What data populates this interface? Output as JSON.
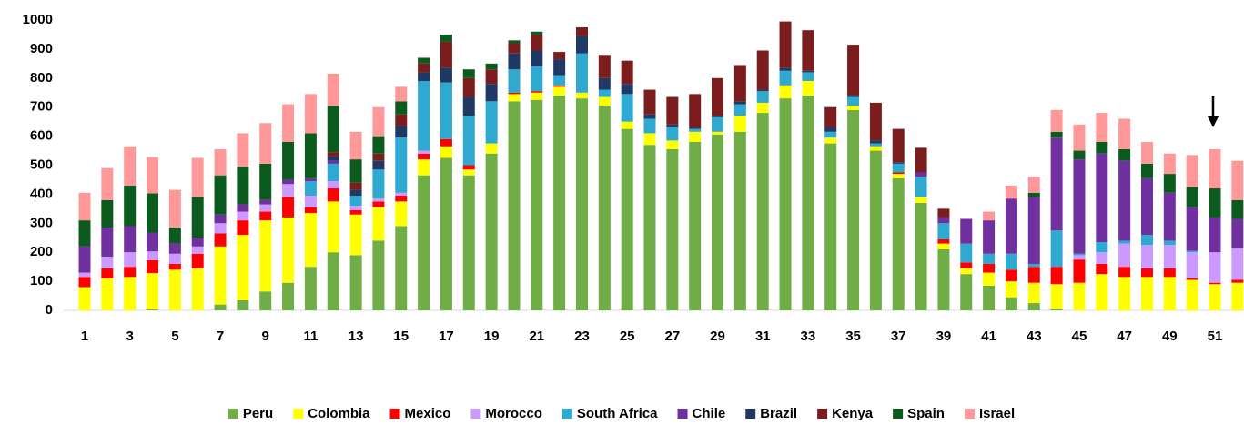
{
  "chart_data": {
    "type": "stacked_bar",
    "categories": [
      1,
      null,
      3,
      null,
      5,
      null,
      7,
      null,
      9,
      null,
      11,
      null,
      13,
      null,
      15,
      null,
      17,
      null,
      19,
      null,
      21,
      null,
      23,
      null,
      25,
      null,
      27,
      null,
      29,
      null,
      31,
      null,
      33,
      null,
      35,
      null,
      37,
      null,
      39,
      null,
      41,
      null,
      43,
      null,
      45,
      null,
      47,
      null,
      49,
      null,
      51,
      null
    ],
    "ylim": [
      0,
      1000
    ],
    "yticks": [
      0,
      100,
      200,
      300,
      400,
      500,
      600,
      700,
      800,
      900,
      1000
    ],
    "grid": false,
    "legend": "bottom",
    "series": [
      {
        "name": "Peru",
        "color": "#70ad47",
        "values": [
          0,
          0,
          0,
          3,
          0,
          0,
          20,
          35,
          65,
          95,
          150,
          200,
          190,
          240,
          290,
          465,
          525,
          465,
          540,
          720,
          725,
          740,
          730,
          705,
          625,
          570,
          555,
          580,
          605,
          615,
          680,
          730,
          740,
          575,
          690,
          550,
          455,
          370,
          210,
          125,
          85,
          45,
          25,
          5,
          0,
          0,
          0,
          0,
          0,
          0,
          0,
          0
        ]
      },
      {
        "name": "Colombia",
        "color": "#ffff00",
        "values": [
          80,
          110,
          115,
          125,
          140,
          145,
          200,
          225,
          245,
          225,
          185,
          175,
          140,
          115,
          85,
          55,
          40,
          20,
          35,
          25,
          25,
          30,
          20,
          30,
          25,
          40,
          30,
          35,
          10,
          55,
          35,
          45,
          50,
          20,
          15,
          15,
          15,
          20,
          20,
          20,
          45,
          55,
          70,
          85,
          95,
          125,
          115,
          115,
          115,
          105,
          90,
          95
        ]
      },
      {
        "name": "Mexico",
        "color": "#ff0000",
        "values": [
          35,
          35,
          35,
          45,
          20,
          50,
          45,
          50,
          30,
          70,
          20,
          45,
          15,
          20,
          20,
          20,
          25,
          15,
          0,
          5,
          5,
          5,
          0,
          0,
          0,
          0,
          0,
          0,
          0,
          0,
          0,
          0,
          0,
          0,
          0,
          0,
          5,
          0,
          15,
          20,
          30,
          40,
          55,
          60,
          80,
          35,
          35,
          30,
          30,
          5,
          5,
          10
        ]
      },
      {
        "name": "Morocco",
        "color": "#cc99ff",
        "values": [
          15,
          40,
          50,
          30,
          35,
          25,
          35,
          30,
          25,
          45,
          40,
          25,
          15,
          10,
          10,
          10,
          0,
          0,
          0,
          0,
          0,
          0,
          0,
          0,
          0,
          0,
          0,
          0,
          0,
          0,
          0,
          0,
          0,
          0,
          0,
          0,
          0,
          0,
          0,
          0,
          0,
          0,
          0,
          0,
          15,
          40,
          80,
          80,
          80,
          90,
          105,
          110
        ]
      },
      {
        "name": "South Africa",
        "color": "#2fa9cf",
        "values": [
          0,
          0,
          0,
          0,
          0,
          0,
          0,
          0,
          0,
          0,
          50,
          60,
          35,
          100,
          190,
          240,
          195,
          170,
          145,
          80,
          85,
          35,
          135,
          25,
          95,
          50,
          45,
          10,
          50,
          40,
          40,
          50,
          30,
          20,
          30,
          10,
          30,
          70,
          55,
          65,
          35,
          55,
          10,
          125,
          5,
          35,
          10,
          35,
          15,
          5,
          0,
          0
        ]
      },
      {
        "name": "Chile",
        "color": "#7030a0",
        "values": [
          90,
          100,
          90,
          65,
          35,
          30,
          30,
          25,
          15,
          15,
          10,
          10,
          0,
          0,
          0,
          0,
          0,
          0,
          0,
          0,
          0,
          0,
          0,
          0,
          0,
          0,
          0,
          0,
          0,
          0,
          0,
          0,
          0,
          0,
          0,
          0,
          0,
          15,
          20,
          85,
          115,
          190,
          230,
          320,
          325,
          305,
          275,
          195,
          165,
          150,
          120,
          100
        ]
      },
      {
        "name": "Brazil",
        "color": "#1f3864",
        "values": [
          0,
          0,
          0,
          0,
          0,
          0,
          0,
          0,
          0,
          0,
          0,
          15,
          20,
          30,
          40,
          30,
          50,
          65,
          60,
          55,
          55,
          55,
          60,
          40,
          35,
          15,
          10,
          5,
          5,
          10,
          5,
          10,
          5,
          15,
          5,
          10,
          5,
          0,
          0,
          0,
          0,
          0,
          0,
          0,
          0,
          0,
          0,
          0,
          0,
          0,
          0,
          0
        ]
      },
      {
        "name": "Kenya",
        "color": "#7b1d1d",
        "values": [
          0,
          0,
          0,
          0,
          0,
          0,
          0,
          0,
          0,
          0,
          0,
          15,
          25,
          25,
          40,
          30,
          90,
          65,
          50,
          35,
          55,
          25,
          30,
          80,
          80,
          85,
          95,
          115,
          130,
          125,
          135,
          160,
          140,
          70,
          175,
          130,
          115,
          85,
          30,
          0,
          0,
          0,
          0,
          0,
          0,
          0,
          0,
          0,
          0,
          0,
          0,
          0
        ]
      },
      {
        "name": "Spain",
        "color": "#0b5a1e",
        "values": [
          90,
          95,
          140,
          135,
          55,
          140,
          135,
          130,
          125,
          130,
          155,
          160,
          80,
          60,
          45,
          20,
          25,
          30,
          20,
          10,
          10,
          0,
          0,
          0,
          0,
          0,
          0,
          0,
          0,
          0,
          0,
          0,
          0,
          0,
          0,
          0,
          0,
          0,
          0,
          0,
          0,
          0,
          15,
          20,
          30,
          40,
          40,
          50,
          65,
          70,
          100,
          65
        ]
      },
      {
        "name": "Israel",
        "color": "#ff9999",
        "values": [
          95,
          110,
          135,
          125,
          130,
          135,
          90,
          115,
          140,
          130,
          135,
          110,
          95,
          100,
          50,
          0,
          0,
          0,
          0,
          0,
          0,
          0,
          0,
          0,
          0,
          0,
          0,
          0,
          0,
          0,
          0,
          0,
          0,
          0,
          0,
          0,
          0,
          0,
          0,
          0,
          30,
          45,
          55,
          75,
          90,
          100,
          105,
          75,
          70,
          110,
          135,
          135
        ]
      }
    ]
  }
}
